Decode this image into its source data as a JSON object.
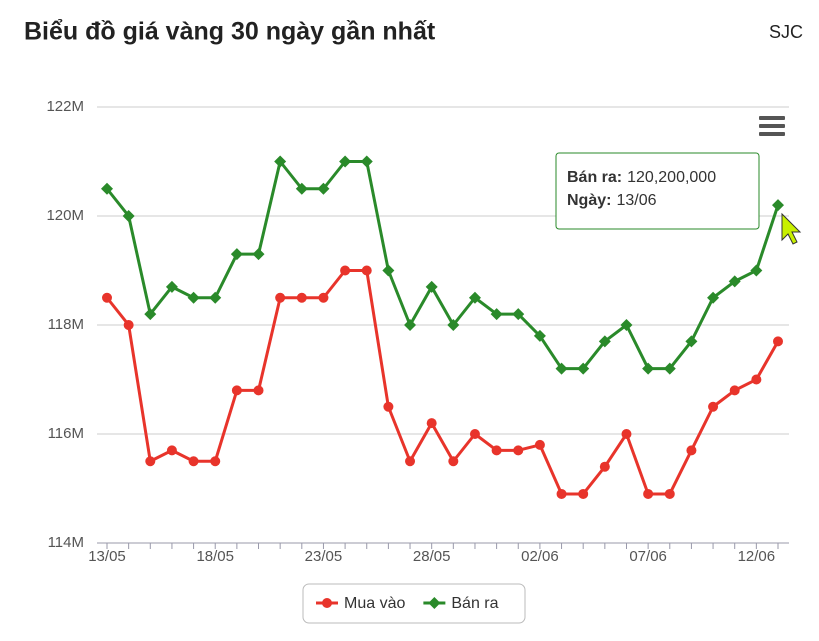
{
  "chart_data": {
    "type": "line",
    "title": "Biểu đồ giá vàng 30 ngày gần nhất",
    "subtitle": "SJC",
    "categories": [
      "13/05",
      null,
      null,
      null,
      null,
      "18/05",
      null,
      null,
      null,
      null,
      "23/05",
      null,
      null,
      null,
      null,
      "28/05",
      null,
      null,
      null,
      null,
      "02/06",
      null,
      null,
      null,
      null,
      "07/06",
      null,
      null,
      null,
      null,
      "12/06",
      null
    ],
    "series": [
      {
        "name": "Mua vào",
        "color": "#e8342b",
        "marker": "circle",
        "values": [
          118500000,
          118000000,
          115500000,
          115700000,
          115500000,
          115500000,
          116800000,
          116800000,
          118500000,
          118500000,
          118500000,
          119000000,
          119000000,
          116500000,
          115500000,
          116200000,
          115500000,
          116000000,
          115700000,
          115700000,
          115800000,
          114900000,
          114900000,
          115400000,
          116000000,
          114900000,
          114900000,
          115700000,
          116500000,
          116800000,
          117000000,
          117700000
        ]
      },
      {
        "name": "Bán ra",
        "color": "#2a8a2a",
        "marker": "diamond",
        "values": [
          120500000,
          120000000,
          118200000,
          118700000,
          118500000,
          118500000,
          119300000,
          119300000,
          121000000,
          120500000,
          120500000,
          121000000,
          121000000,
          119000000,
          118000000,
          118700000,
          118000000,
          118500000,
          118200000,
          118200000,
          117800000,
          117200000,
          117200000,
          117700000,
          118000000,
          117200000,
          117200000,
          117700000,
          118500000,
          118800000,
          119000000,
          120200000
        ]
      }
    ],
    "ylim": [
      114000000,
      122000000
    ],
    "yticks": [
      {
        "value": 114000000,
        "label": "114M"
      },
      {
        "value": 116000000,
        "label": "116M"
      },
      {
        "value": 118000000,
        "label": "118M"
      },
      {
        "value": 120000000,
        "label": "120M"
      },
      {
        "value": 122000000,
        "label": "122M"
      }
    ],
    "grid": true,
    "legend": "bottom",
    "tooltip": {
      "series_label": "Bán ra:",
      "value": "120,200,000",
      "date_label": "Ngày:",
      "date": "13/06"
    }
  }
}
